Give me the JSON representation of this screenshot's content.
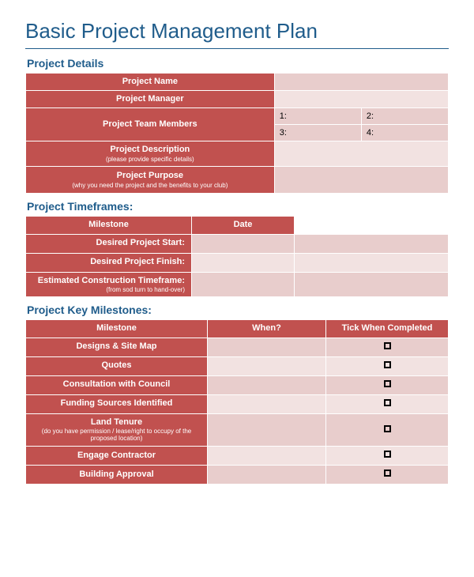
{
  "title": "Basic Project Management Plan",
  "colors": {
    "heading": "#1f5c8b",
    "header_bg": "#c1514f",
    "header_text": "#ffffff",
    "data_bg_dark": "#e8cdcc",
    "data_bg_light": "#f2e2e1",
    "border": "#ffffff"
  },
  "sections": {
    "details": {
      "heading": "Project Details",
      "rows": {
        "name": {
          "label": "Project Name",
          "value": ""
        },
        "manager": {
          "label": "Project Manager",
          "value": ""
        },
        "team": {
          "label": "Project Team Members",
          "slot1": "1:",
          "slot2": "2:",
          "slot3": "3:",
          "slot4": "4:"
        },
        "description": {
          "label": "Project Description",
          "sublabel": "(please provide specific details)",
          "value": ""
        },
        "purpose": {
          "label": "Project Purpose",
          "sublabel": "(why you need the project and the benefits to your club)",
          "value": ""
        }
      }
    },
    "timeframes": {
      "heading": "Project Timeframes:",
      "columns": {
        "milestone": "Milestone",
        "date": "Date"
      },
      "rows": {
        "start": {
          "label": "Desired Project Start:",
          "value": ""
        },
        "finish": {
          "label": "Desired Project Finish:",
          "value": ""
        },
        "construction": {
          "label": "Estimated Construction Timeframe:",
          "sublabel": "(from sod turn to hand-over)",
          "value": ""
        }
      }
    },
    "milestones": {
      "heading": "Project Key Milestones:",
      "columns": {
        "milestone": "Milestone",
        "when": "When?",
        "tick": "Tick When Completed"
      },
      "rows": [
        {
          "label": "Designs & Site Map",
          "sublabel": ""
        },
        {
          "label": "Quotes",
          "sublabel": ""
        },
        {
          "label": "Consultation with Council",
          "sublabel": ""
        },
        {
          "label": "Funding Sources Identified",
          "sublabel": ""
        },
        {
          "label": "Land Tenure",
          "sublabel": "(do you have permission / lease/right to occupy of the proposed location)"
        },
        {
          "label": "Engage Contractor",
          "sublabel": ""
        },
        {
          "label": "Building Approval",
          "sublabel": ""
        }
      ]
    }
  }
}
